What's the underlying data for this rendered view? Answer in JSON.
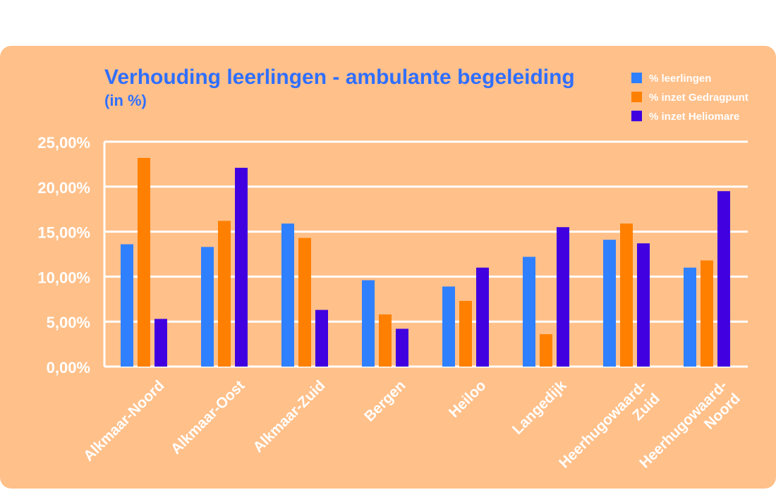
{
  "chart_data": {
    "type": "bar",
    "title": "Verhouding leerlingen - ambulante begeleiding",
    "subtitle": "(in %)",
    "categories": [
      "Alkmaar-Noord",
      "Alkmaar-Oost",
      "Alkmaar-Zuid",
      "Bergen",
      "Heiloo",
      "Langedijk",
      "Heerhugowaard-\nZuid",
      "Heerhugowaard-\nNoord"
    ],
    "series": [
      {
        "name": "% leerlingen",
        "color": "#2F80FF",
        "values": [
          13.6,
          13.3,
          15.9,
          9.6,
          8.9,
          12.2,
          14.1,
          11.0
        ]
      },
      {
        "name": "% inzet Gedragpunt",
        "color": "#FF8000",
        "values": [
          23.2,
          16.2,
          14.3,
          5.8,
          7.3,
          3.6,
          15.9,
          11.8
        ]
      },
      {
        "name": "% inzet Heliomare",
        "color": "#4000E0",
        "values": [
          5.3,
          22.1,
          6.3,
          4.2,
          11.0,
          15.5,
          13.7,
          19.5
        ]
      }
    ],
    "yticks": [
      "0,00%",
      "5,00%",
      "10,00%",
      "15,00%",
      "20,00%",
      "25,00%"
    ],
    "ylim": [
      0,
      25
    ],
    "grid": true,
    "legend": "top-right",
    "colors": {
      "background": "#FFC08A",
      "title": "#2F6FFF",
      "text": "#ffffff",
      "grid": "#ffffff"
    }
  }
}
